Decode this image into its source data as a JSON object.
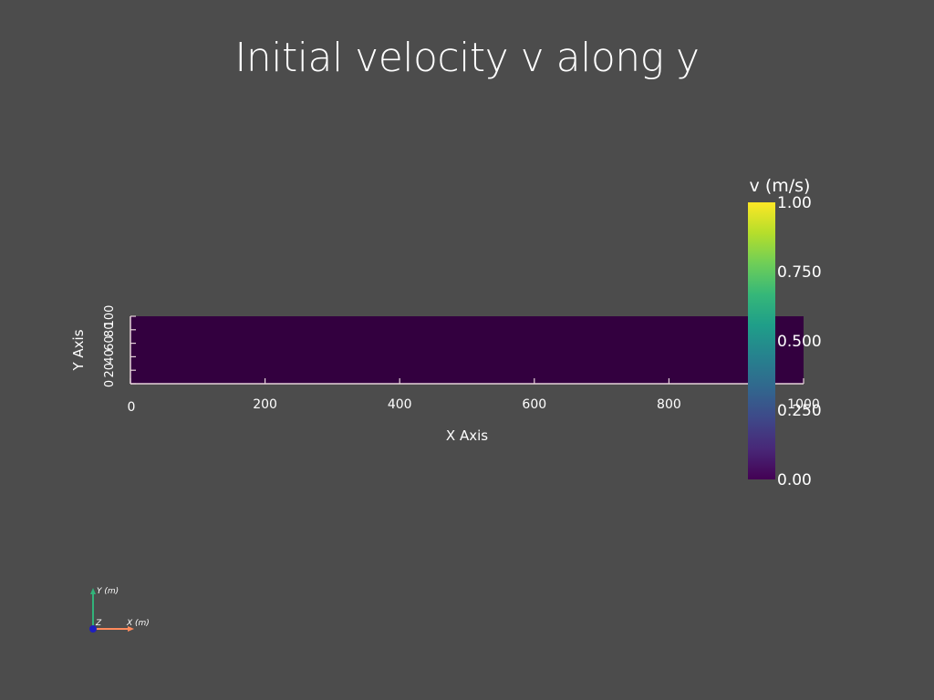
{
  "chart_data": {
    "type": "heatmap",
    "title": "Initial velocity v along y",
    "field_value": 0.0,
    "x_axis": {
      "label": "X Axis",
      "range": [
        0,
        1000
      ],
      "ticks": [
        "0",
        "200",
        "400",
        "600",
        "800",
        "1000"
      ]
    },
    "y_axis": {
      "label": "Y Axis",
      "range": [
        0,
        100
      ],
      "ticks": [
        "0",
        "20",
        "40",
        "60",
        "80",
        "100"
      ]
    },
    "colorbar": {
      "title": "v (m/s)",
      "range": [
        0,
        1
      ],
      "colormap": "viridis",
      "ticks": [
        "0.00",
        "0.250",
        "0.500",
        "0.750",
        "1.00"
      ]
    },
    "orientation_axes": {
      "x_label": "X (m)",
      "y_label": "Y (m)",
      "z_label": "Z"
    }
  },
  "colors": {
    "background": "#4c4c4c",
    "field_fill": "#33003f",
    "axis_line": "#e6d3da",
    "orient_x": "#ff8a5c",
    "orient_y": "#32b37a",
    "orient_z": "#1f1fbf"
  }
}
